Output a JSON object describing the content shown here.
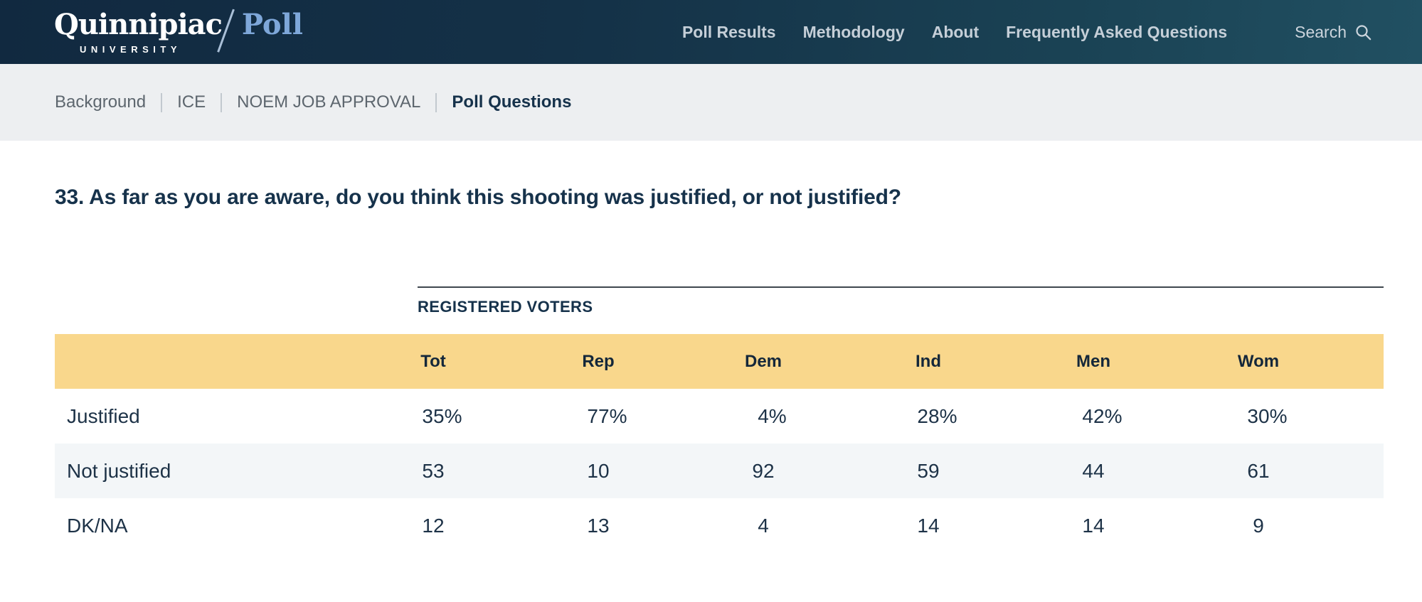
{
  "logo": {
    "university": "Quinnipiac",
    "poll": "Poll",
    "subtitle": "UNIVERSITY"
  },
  "nav": {
    "items": [
      {
        "label": "Poll Results"
      },
      {
        "label": "Methodology"
      },
      {
        "label": "About"
      },
      {
        "label": "Frequently Asked Questions"
      }
    ],
    "search_label": "Search",
    "search_icon": "magnifier"
  },
  "breadcrumb": {
    "items": [
      {
        "label": "Background"
      },
      {
        "label": "ICE"
      },
      {
        "label": "NOEM JOB APPROVAL"
      }
    ],
    "current": "Poll Questions"
  },
  "main": {
    "question": "33. As far as you are aware, do you think this shooting was justified, or not justified?"
  },
  "table": {
    "group_label": "REGISTERED VOTERS",
    "columns": [
      "Tot",
      "Rep",
      "Dem",
      "Ind",
      "Men",
      "Wom"
    ],
    "rows": [
      {
        "label": "Justified",
        "values": [
          "35%",
          "77%",
          "4%",
          "28%",
          "42%",
          "30%"
        ]
      },
      {
        "label": "Not justified",
        "values": [
          "53",
          "10",
          "92",
          "59",
          "44",
          "61"
        ]
      },
      {
        "label": "DK/NA",
        "values": [
          "12",
          "13",
          "4",
          "14",
          "14",
          "9"
        ]
      }
    ]
  },
  "colors": {
    "navy": "#16324b",
    "navbar_dark": "#112940",
    "navbar_light": "#215062",
    "poll_blue": "#7ea7d9",
    "breadcrumb_bg": "#edeff1",
    "header_yellow": "#f9d78c",
    "row_alt": "#f3f6f8"
  }
}
